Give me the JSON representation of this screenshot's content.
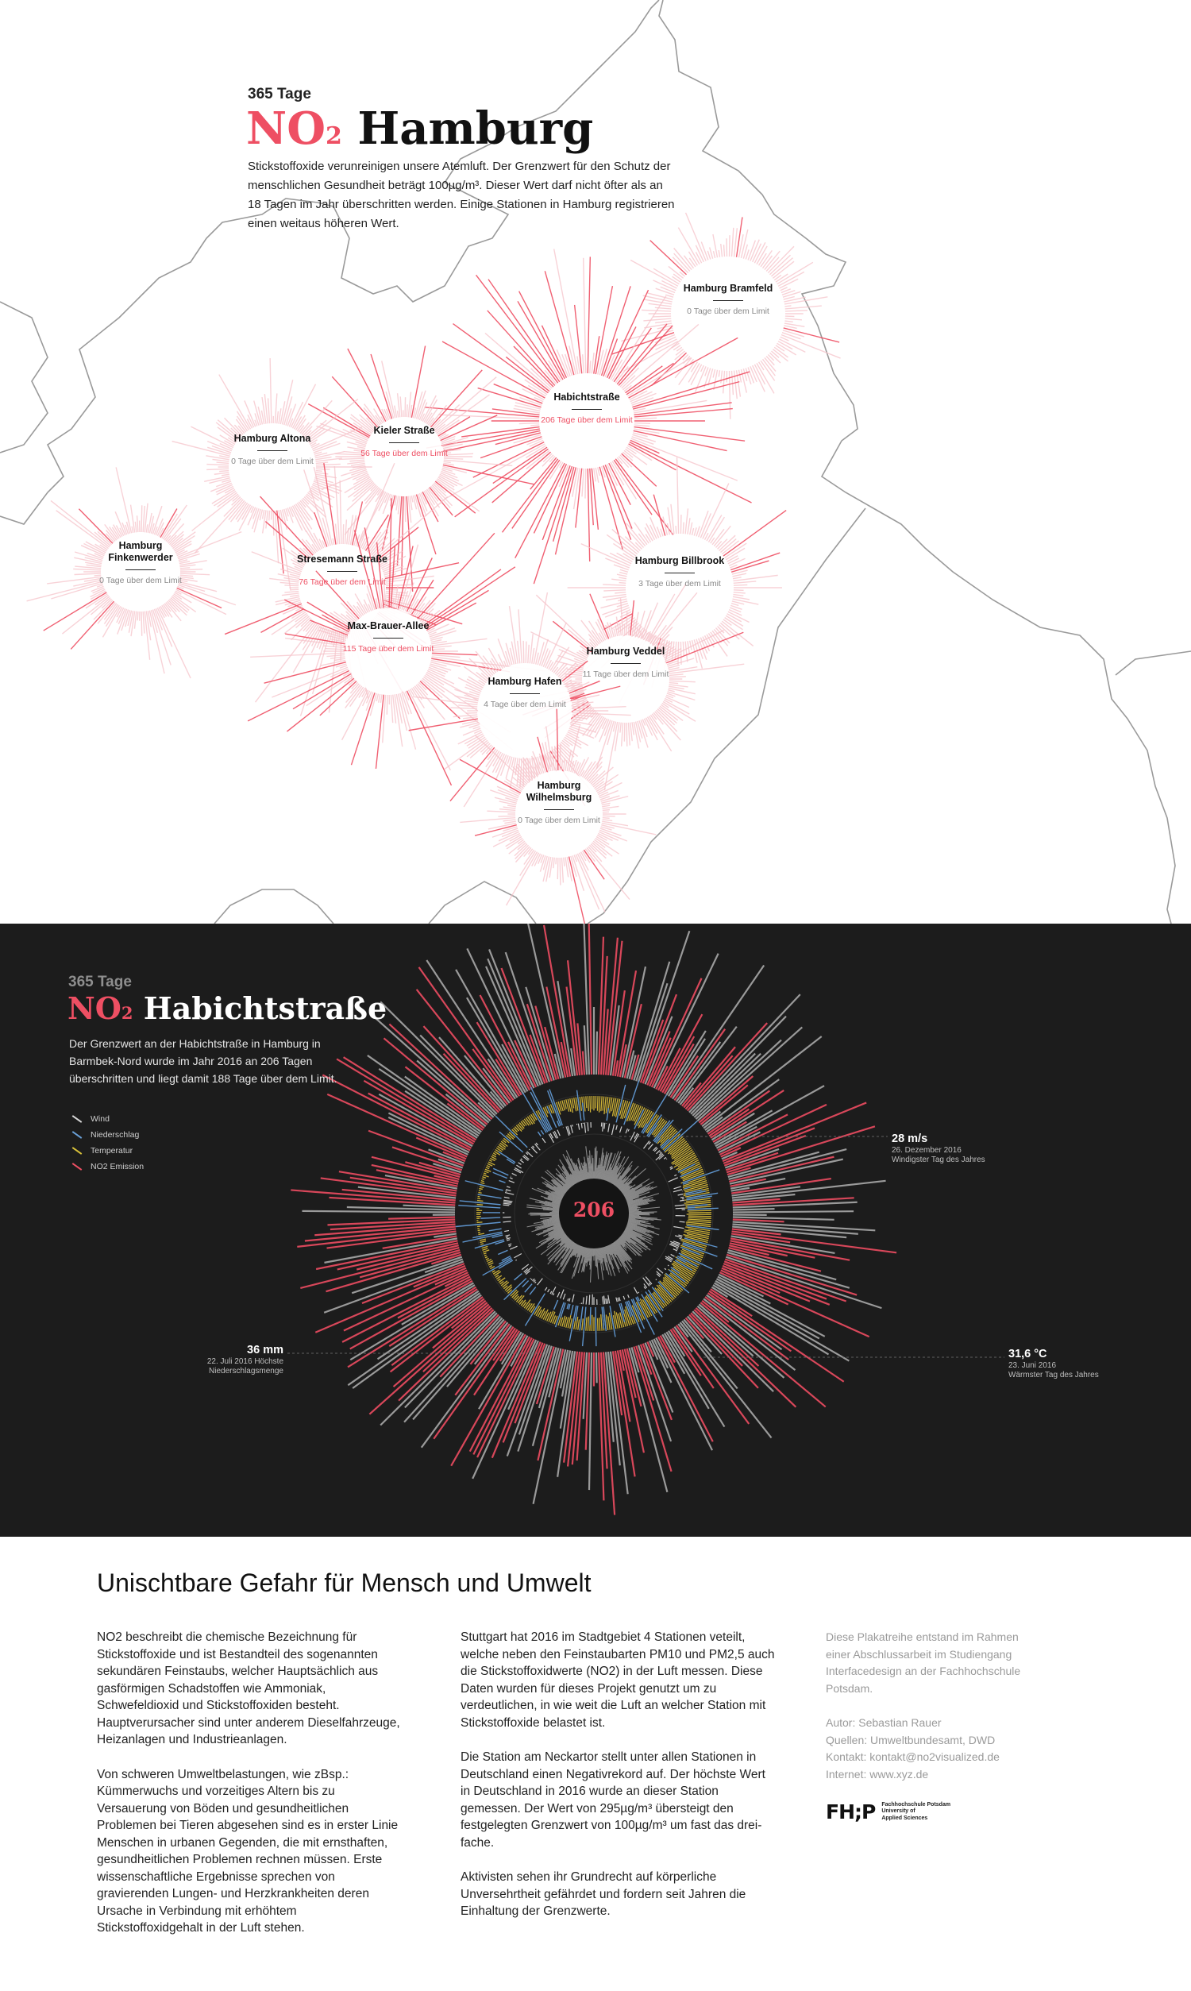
{
  "top": {
    "kicker": "365 Tage",
    "title_no": "NO",
    "title_sub": "2",
    "title_city": " Hamburg",
    "intro": "Stickstoffoxide verunreinigen unsere Atemluft. Der Grenzwert für den Schutz der menschlichen Gesundheit beträgt 100µg/m³. Dieser Wert darf nicht öfter als an 18 Tagen im Jahr überschritten werden. Einige Stationen in Hamburg registrieren einen weitaus höheren Wert.",
    "stations": [
      {
        "name": "Hamburg Bramfeld",
        "days": "0 Tage über dem Limit",
        "count": 0
      },
      {
        "name": "Habichtstraße",
        "days": "206 Tage über dem Limit",
        "count": 206
      },
      {
        "name": "Kieler Straße",
        "days": "56 Tage über dem Limit",
        "count": 56
      },
      {
        "name": "Hamburg Altona",
        "days": "0 Tage über dem Limit",
        "count": 0
      },
      {
        "name": "Hamburg Finkenwerder",
        "days": "0 Tage über dem Limit",
        "count": 0
      },
      {
        "name": "Stresemann Straße",
        "days": "76 Tage über dem Limit",
        "count": 76
      },
      {
        "name": "Max-Brauer-Allee",
        "days": "115 Tage über dem Limit",
        "count": 115
      },
      {
        "name": "Hamburg Billbrook",
        "days": "3 Tage über dem Limit",
        "count": 3
      },
      {
        "name": "Hamburg Veddel",
        "days": "11 Tage über dem Limit",
        "count": 11
      },
      {
        "name": "Hamburg Hafen",
        "days": "4 Tage über dem Limit",
        "count": 4
      },
      {
        "name": "Hamburg Wilhelmsburg",
        "days": "0 Tage über dem Limit",
        "count": 0
      }
    ]
  },
  "detail": {
    "kicker": "365 Tage",
    "title_no": "NO",
    "title_sub": "2",
    "title_station": " Habichtstraße",
    "intro": "Der Grenzwert an der Habichtstraße in Hamburg in Barmbek-Nord wurde im Jahr 2016 an 206 Tagen überschritten und liegt damit 188 Tage über dem Limit.",
    "legend": [
      {
        "label": "Wind",
        "color": "#d8d8d8"
      },
      {
        "label": "Niederschlag",
        "color": "#6aa1d8"
      },
      {
        "label": "Temperatur",
        "color": "#d9c23a"
      },
      {
        "label": "NO2 Emission",
        "color": "#ee4f63"
      }
    ],
    "center_value": "206",
    "annotations": {
      "wind": {
        "value": "28 m/s",
        "date": "26. Dezember 2016",
        "desc": "Windigster Tag des Jahres"
      },
      "rain": {
        "value": "36 mm",
        "date": "22. Juli 2016 Höchste",
        "desc": "Niederschlagsmenge"
      },
      "temp": {
        "value": "31,6 °C",
        "date": "23. Juni 2016",
        "desc": "Wärmster Tag des Jahres"
      }
    }
  },
  "article": {
    "heading": "Unischtbare Gefahr für Mensch und Umwelt",
    "col1": [
      "NO2 beschreibt die chemische Bezeichnung für Stickstoffoxide und ist Bestandteil des sogenannten sekundären Feinstaubs, welcher Hauptsächlich aus gasförmigen Schadstoffen wie Ammoniak, Schwefeldioxid und Stickstoffoxiden besteht. Hauptverursacher sind unter anderem Dieselfahrzeuge, Heizanlagen und Industrieanlagen.",
      "Von schweren Umweltbelastungen, wie zBsp.: Kümmerwuchs und vorzeitiges Altern bis zu Versauerung von Böden und gesundheitlichen Problemen bei Tieren abgesehen sind es in erster Linie Menschen in urbanen Gegenden, die mit ernsthaften, gesundheitlichen Problemen rechnen müssen. Erste wissenschaftliche Ergebnisse sprechen von gravierenden Lungen- und Herzkrankheiten deren Ursache in Verbindung mit erhöhtem Stickstoffoxidgehalt in der Luft stehen."
    ],
    "col2": [
      "Stuttgart hat 2016 im Stadtgebiet 4 Stationen veteilt, welche neben den Feinstaubarten PM10 und PM2,5 auch die Stickstoffoxidwerte (NO2) in der Luft messen. Diese Daten wurden für dieses Projekt genutzt um zu verdeutlichen, in wie weit die Luft an welcher Station mit Stickstoffoxide belastet ist.",
      "Die Station am Neckartor stellt unter allen Stationen in Deutschland einen Negativrekord auf. Der höchste Wert in Deutschland in 2016 wurde an dieser Station gemessen. Der Wert von 295µg/m³ übersteigt den festgelegten Grenzwert von 100µg/m³ um fast das drei-fache.",
      "Aktivisten sehen ihr Grundrecht auf körperliche Unversehrtheit gefährdet und fordern seit Jahren die Einhaltung der Grenzwerte."
    ],
    "side": {
      "about": "Diese Plakatreihe entstand im Rahmen einer Abschlussarbeit im Studiengang Interfacedesign an der Fachhochschule Potsdam.",
      "author": "Autor: Sebastian Rauer",
      "sources": "Quellen: Umweltbundesamt, DWD",
      "contact": "Kontakt: kontakt@no2visualized.de",
      "web": "Internet: www.xyz.de"
    },
    "logo": {
      "mark": "FH;P",
      "line1": "Fachhochschule Potsdam",
      "line2": "University of",
      "line3": "Applied Sciences"
    }
  }
}
